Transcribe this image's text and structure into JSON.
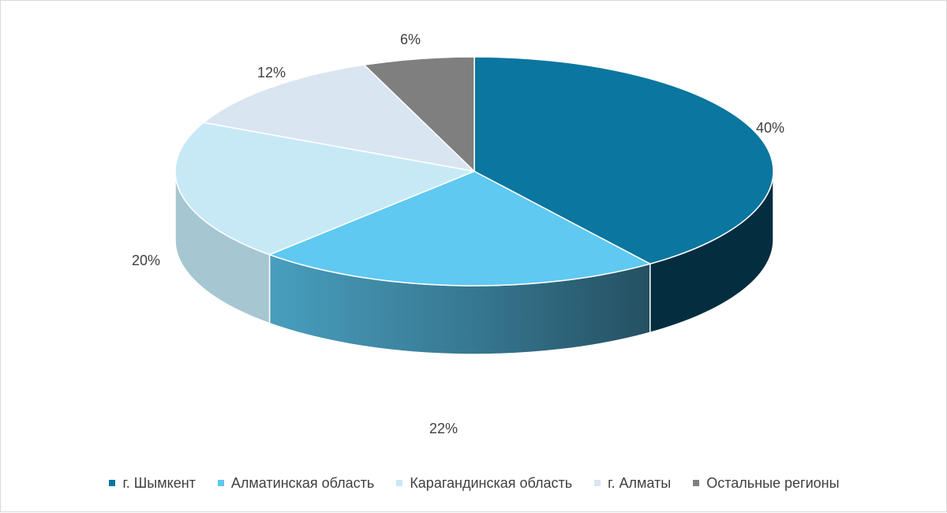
{
  "chart_data": {
    "type": "pie",
    "style": "3d",
    "title": "",
    "legend_position": "bottom",
    "categories": [
      "г. Шымкент",
      "Алматинская область",
      "Карагандинская область",
      "г. Алматы",
      "Остальные регионы"
    ],
    "values": [
      40,
      22,
      20,
      12,
      6
    ],
    "data_labels": [
      "40%",
      "22%",
      "20%",
      "12%",
      "6%"
    ],
    "colors": [
      "#0b769f",
      "#5fc9f1",
      "#c7e9f6",
      "#d9e5f1",
      "#7f7f7f"
    ]
  }
}
